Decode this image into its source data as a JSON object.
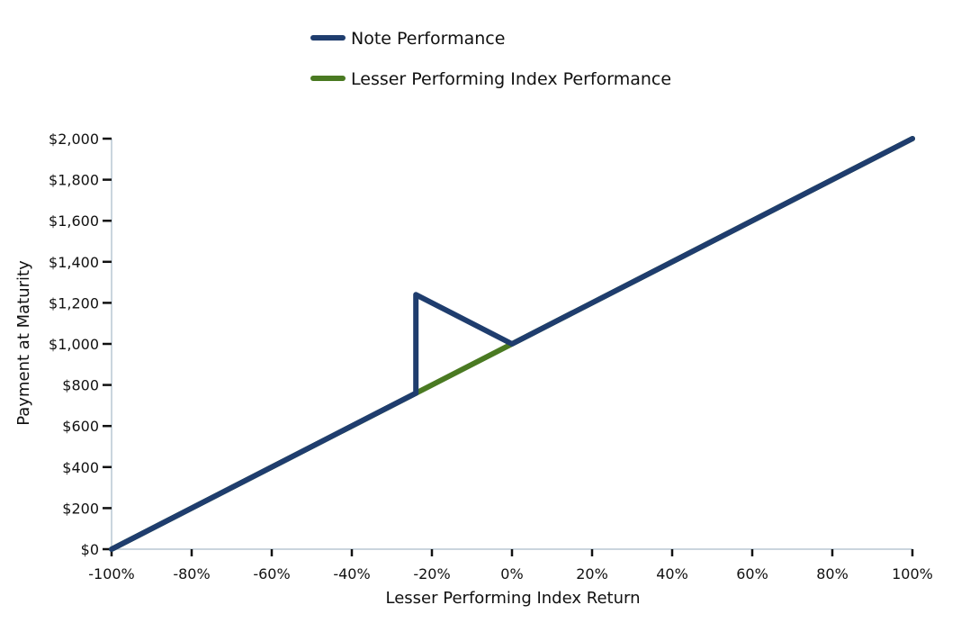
{
  "chart_data": {
    "type": "line",
    "title": "",
    "xlabel": "Lesser Performing Index Return",
    "ylabel": "Payment at Maturity",
    "xlim": [
      -100,
      100
    ],
    "ylim": [
      0,
      2000
    ],
    "x_ticks": [
      -100,
      -80,
      -60,
      -40,
      -20,
      0,
      20,
      40,
      60,
      80,
      100
    ],
    "x_tick_labels": [
      "-100%",
      "-80%",
      "-60%",
      "-40%",
      "-20%",
      "0%",
      "20%",
      "40%",
      "60%",
      "80%",
      "100%"
    ],
    "y_ticks": [
      0,
      200,
      400,
      600,
      800,
      1000,
      1200,
      1400,
      1600,
      1800,
      2000
    ],
    "y_tick_labels": [
      "$0",
      "$200",
      "$400",
      "$600",
      "$800",
      "$1,000",
      "$1,200",
      "$1,400",
      "$1,600",
      "$1,800",
      "$2,000"
    ],
    "grid": false,
    "legend_position": "top-center",
    "series": [
      {
        "name": "Lesser Performing Index Performance",
        "color": "#4a7a22",
        "x": [
          -100,
          100
        ],
        "y": [
          0,
          2000
        ]
      },
      {
        "name": "Note Performance",
        "color": "#1f3d6e",
        "x": [
          -100,
          -24,
          -24,
          0,
          100
        ],
        "y": [
          0,
          760,
          1240,
          1000,
          2000
        ]
      }
    ]
  },
  "legend": {
    "items": [
      {
        "label": "Note Performance",
        "color": "#1f3d6e"
      },
      {
        "label": "Lesser Performing Index Performance",
        "color": "#4a7a22"
      }
    ]
  },
  "axis_color": "#b8c7d3"
}
